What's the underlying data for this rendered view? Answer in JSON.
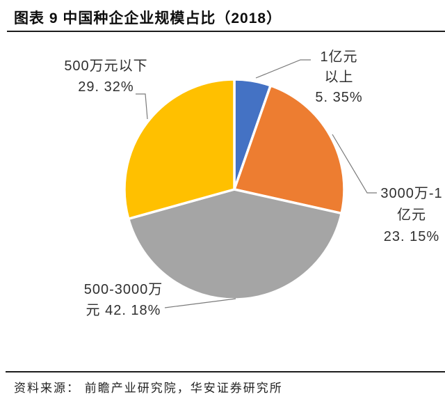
{
  "header": {
    "title": "图表 9 中国种企企业规模占比（2018）"
  },
  "chart_data": {
    "type": "pie",
    "title": "中国种企企业规模占比（2018）",
    "start_angle_deg": 0,
    "direction": "clockwise",
    "legend_position": "none",
    "data_labels": "outside-with-leader-lines",
    "slices": [
      {
        "label": "1亿元以上",
        "value": 5.35,
        "color": "#4472C4"
      },
      {
        "label": "3000万-1亿元",
        "value": 23.15,
        "color": "#ED7D31"
      },
      {
        "label": "500-3000万元",
        "value": 42.18,
        "color": "#A5A5A5"
      },
      {
        "label": "500万元以下",
        "value": 29.32,
        "color": "#FFC000"
      }
    ]
  },
  "callouts": {
    "below_5m": {
      "line1": "500万元以下",
      "line2": "29. 32%"
    },
    "above_100m": {
      "line1": "1亿元",
      "line2": "以上",
      "line3": "5. 35%"
    },
    "m30_to_100m": {
      "line1": "3000万-1",
      "line2": "亿元",
      "line3": "23. 15%"
    },
    "m5_to_30m": {
      "line1": "500-3000万",
      "line2": "元 42. 18%"
    }
  },
  "footer": {
    "source": "资料来源： 前瞻产业研究院，华安证券研究所"
  },
  "colors": {
    "slice_blue": "#4472C4",
    "slice_orange": "#ED7D31",
    "slice_gray": "#A5A5A5",
    "slice_yellow": "#FFC000",
    "leader_line": "#7a7a7a",
    "rule": "#1c1c1c"
  }
}
